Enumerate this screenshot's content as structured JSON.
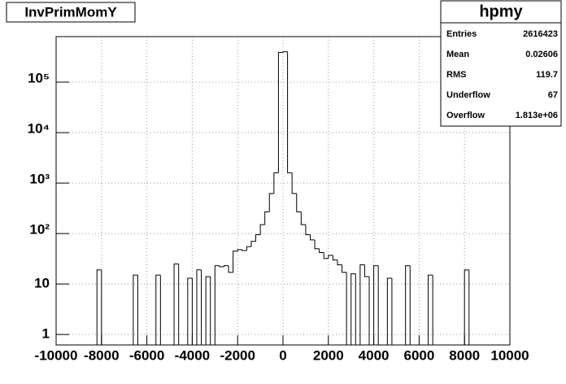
{
  "chart_data": {
    "type": "histogram",
    "title": "InvPrimMomY",
    "bins": [
      -10000,
      -9800,
      -9600,
      -9400,
      -9200,
      -9000,
      -8800,
      -8600,
      -8400,
      -8200,
      -8000,
      -7800,
      -7600,
      -7400,
      -7200,
      -7000,
      -6800,
      -6600,
      -6400,
      -6200,
      -6000,
      -5800,
      -5600,
      -5400,
      -5200,
      -5000,
      -4800,
      -4600,
      -4400,
      -4200,
      -4000,
      -3800,
      -3600,
      -3400,
      -3200,
      -3000,
      -2800,
      -2600,
      -2400,
      -2200,
      -2000,
      -1800,
      -1600,
      -1400,
      -1200,
      -1000,
      -800,
      -600,
      -400,
      -200,
      0,
      200,
      400,
      600,
      800,
      1000,
      1200,
      1400,
      1600,
      1800,
      2000,
      2200,
      2400,
      2600,
      2800,
      3000,
      3200,
      3400,
      3600,
      3800,
      4000,
      4200,
      4400,
      4600,
      4800,
      5000,
      5200,
      5400,
      5600,
      5800,
      6000,
      6200,
      6400,
      6600,
      6800,
      7000,
      7200,
      7400,
      7600,
      7800,
      8000,
      8200,
      8400,
      8600,
      8800,
      9000,
      9200,
      9400,
      9600,
      9800,
      10000
    ],
    "values": [
      0,
      0,
      0,
      0,
      0,
      0,
      0,
      0,
      0,
      19,
      0,
      0,
      0,
      0,
      0,
      0,
      0,
      15,
      0,
      0,
      0,
      0,
      15,
      0,
      0,
      0,
      25,
      0,
      0,
      13,
      0,
      19,
      0,
      14,
      0,
      23,
      22,
      23,
      17,
      45,
      48,
      46,
      55,
      70,
      95,
      150,
      270,
      620,
      1600,
      390000,
      400000,
      1600,
      620,
      270,
      150,
      95,
      75,
      50,
      42,
      32,
      37,
      30,
      24,
      17,
      0,
      16,
      0,
      24,
      14,
      0,
      23,
      0,
      0,
      13,
      0,
      0,
      0,
      23,
      0,
      0,
      0,
      0,
      15,
      0,
      0,
      0,
      0,
      0,
      0,
      0,
      19,
      0,
      0,
      0,
      0,
      0,
      0,
      0,
      0,
      0
    ],
    "color": "#000000",
    "xlim": [
      -10000,
      10000
    ],
    "xticks": [
      -10000,
      -8000,
      -6000,
      -4000,
      -2000,
      0,
      2000,
      4000,
      6000,
      8000,
      10000
    ],
    "ylim": [
      0.62,
      800000
    ],
    "yticks": [
      1,
      10,
      {
        "value": 100,
        "label": "10²"
      },
      {
        "value": 1000,
        "label": "10³"
      },
      {
        "value": 10000,
        "label": "10⁴"
      },
      {
        "value": 100000,
        "label": "10⁵"
      }
    ],
    "log_y": true,
    "grid": true,
    "stats": {
      "title": "hpmy",
      "rows": [
        {
          "label": "Entries",
          "value": "2616423"
        },
        {
          "label": "Mean",
          "value": "0.02606"
        },
        {
          "label": "RMS",
          "value": "119.7"
        },
        {
          "label": "Underflow",
          "value": "67"
        },
        {
          "label": "Overflow",
          "value": "1.813e+06"
        }
      ]
    }
  }
}
